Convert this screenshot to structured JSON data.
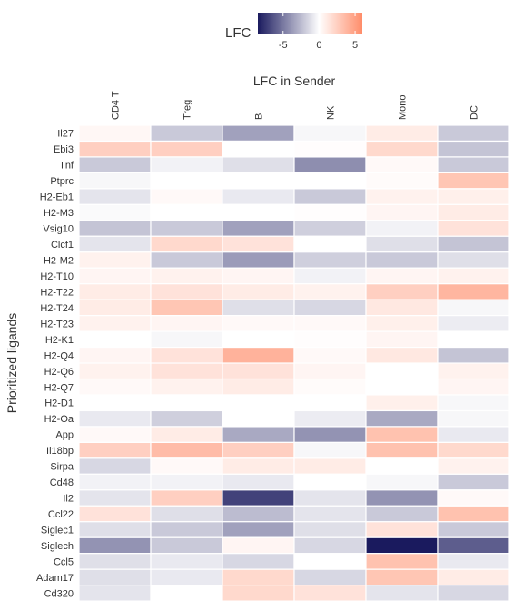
{
  "chart_data": {
    "type": "heatmap",
    "title": "",
    "xlabel": "LFC in Sender",
    "ylabel": "Prioritized ligands",
    "legend": {
      "title": "LFC",
      "placement": "top",
      "ticks": [
        -5,
        0,
        5
      ],
      "range": [
        -8.5,
        6
      ]
    },
    "colors": {
      "low": "#1a1a5e",
      "mid": "#ffffff",
      "high": "#ff8c69"
    },
    "columns": [
      "CD4 T",
      "Treg",
      "B",
      "NK",
      "Mono",
      "DC"
    ],
    "rows": [
      "Il27",
      "Ebi3",
      "Tnf",
      "Ptprc",
      "H2-Eb1",
      "H2-M3",
      "Vsig10",
      "Clcf1",
      "H2-M2",
      "H2-T10",
      "H2-T22",
      "H2-T24",
      "H2-T23",
      "H2-K1",
      "H2-Q4",
      "H2-Q6",
      "H2-Q7",
      "H2-D1",
      "H2-Oa",
      "App",
      "Il18bp",
      "Sirpa",
      "Cd48",
      "Il2",
      "Ccl22",
      "Siglec1",
      "Siglech",
      "Ccl5",
      "Adam17",
      "Cd320"
    ],
    "values": [
      [
        0.4,
        -2.0,
        -3.5,
        -0.3,
        1.0,
        -2.0
      ],
      [
        2.5,
        2.5,
        0.0,
        0.1,
        2.0,
        -2.2
      ],
      [
        -2.0,
        -0.5,
        -1.2,
        -4.2,
        0.3,
        -2.0
      ],
      [
        -0.3,
        0.0,
        0.0,
        0.0,
        0.2,
        3.0
      ],
      [
        -1.0,
        0.3,
        -0.8,
        -2.0,
        0.7,
        0.8
      ],
      [
        -0.2,
        0.0,
        0.0,
        0.1,
        0.5,
        1.0
      ],
      [
        -2.2,
        -2.0,
        -3.5,
        -1.8,
        -0.5,
        1.5
      ],
      [
        -1.0,
        2.0,
        1.5,
        0.0,
        -1.2,
        -2.2
      ],
      [
        0.7,
        -2.0,
        -3.7,
        -1.8,
        -2.0,
        -1.2
      ],
      [
        0.5,
        0.7,
        0.5,
        -0.5,
        0.5,
        0.7
      ],
      [
        1.0,
        1.5,
        1.0,
        0.7,
        2.5,
        3.8
      ],
      [
        1.0,
        3.0,
        -1.2,
        -1.5,
        1.2,
        -0.3
      ],
      [
        0.7,
        0.5,
        0.3,
        0.3,
        0.8,
        -0.7
      ],
      [
        0.0,
        -0.3,
        0.0,
        0.1,
        0.5,
        0.0
      ],
      [
        0.5,
        1.5,
        4.0,
        0.3,
        1.2,
        -2.2
      ],
      [
        0.7,
        1.5,
        1.5,
        0.5,
        0.0,
        0.7
      ],
      [
        0.3,
        0.7,
        1.0,
        0.2,
        0.0,
        0.5
      ],
      [
        0.0,
        0.0,
        0.0,
        0.0,
        0.8,
        -0.3
      ],
      [
        -0.8,
        -1.8,
        0.0,
        -0.7,
        -3.2,
        -0.3
      ],
      [
        0.3,
        1.0,
        -3.2,
        -4.0,
        3.2,
        -0.8
      ],
      [
        2.5,
        3.5,
        2.5,
        -0.3,
        3.2,
        2.0
      ],
      [
        -1.5,
        0.3,
        1.0,
        1.0,
        0.0,
        0.7
      ],
      [
        -0.5,
        -0.5,
        -0.8,
        0.0,
        -0.3,
        -2.0
      ],
      [
        -1.0,
        2.5,
        -7.0,
        -1.0,
        -4.0,
        0.3
      ],
      [
        1.5,
        -1.2,
        -2.5,
        -1.0,
        -2.0,
        3.2
      ],
      [
        -1.2,
        -2.0,
        -3.5,
        -1.2,
        1.5,
        -2.0
      ],
      [
        -4.0,
        -2.0,
        0.5,
        -1.5,
        -8.5,
        -6.0
      ],
      [
        -1.2,
        -0.8,
        -1.5,
        0.0,
        3.2,
        -0.8
      ],
      [
        -1.2,
        -0.8,
        2.0,
        -1.5,
        3.0,
        1.0
      ],
      [
        -1.0,
        0.0,
        2.0,
        1.5,
        -1.0,
        -1.5
      ]
    ]
  }
}
